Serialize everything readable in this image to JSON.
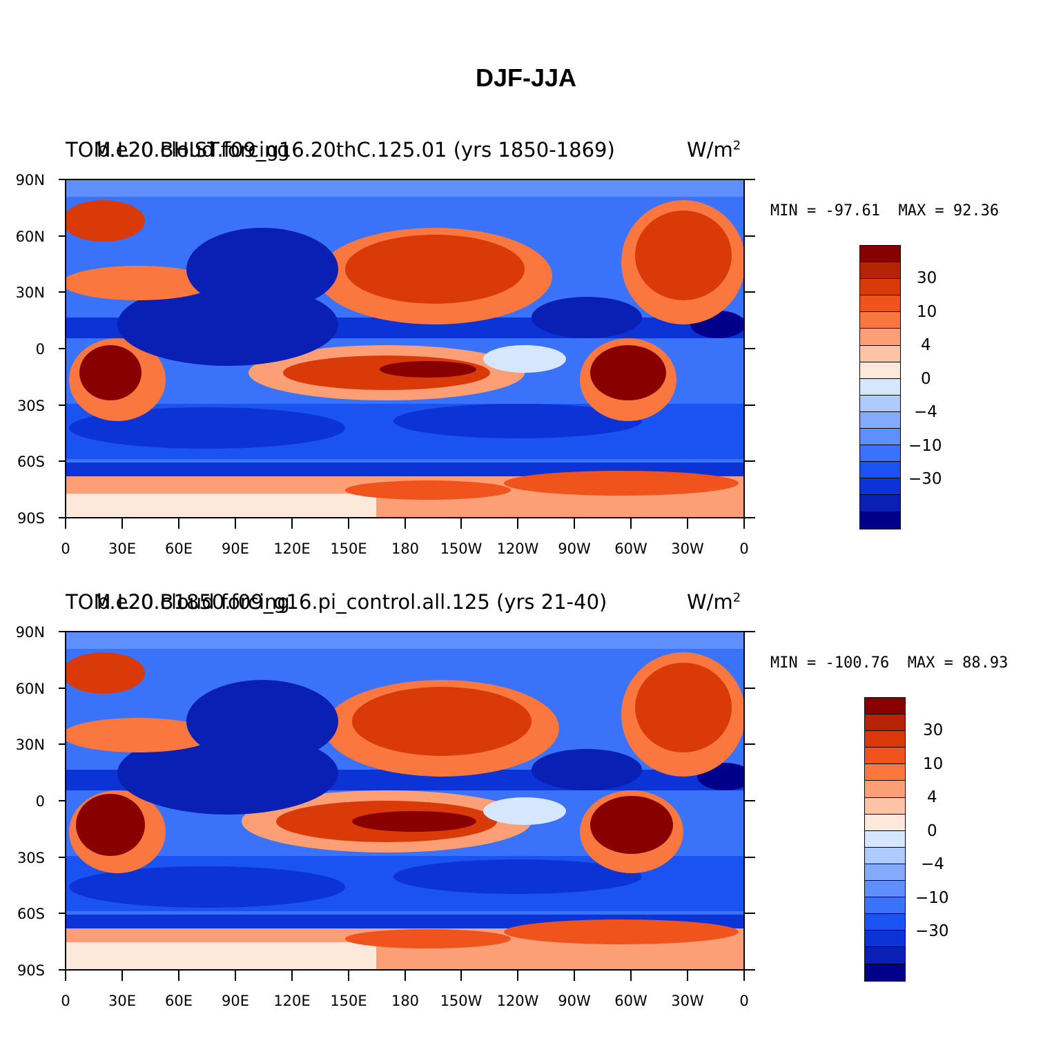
{
  "title": "DJF-JJA",
  "colors": {
    "scale": [
      "#00008b",
      "#0a1fb4",
      "#0b33d6",
      "#1b52f2",
      "#3a72fa",
      "#5e8ffc",
      "#83aafd",
      "#aecbfd",
      "#d6e7fd",
      "#fde8dc",
      "#fdc3a6",
      "#fc9f76",
      "#fa7840",
      "#f0531c",
      "#d93a08",
      "#b52405",
      "#880000"
    ]
  },
  "panels": [
    {
      "model_title": "b.e20.BHIST.f09_g16.20thC.125.01 (yrs 1850-1869)",
      "field_title": "TOM L20 cloud forcing",
      "units": "W/m",
      "units_exp": "2",
      "min_label": "MIN = -97.61",
      "max_label": "MAX =  92.36",
      "colorbar_labels": [
        "30",
        "10",
        "4",
        "0",
        "−4",
        "−10",
        "−30"
      ]
    },
    {
      "model_title": "b.e20.B1850.f09_g16.pi_control.all.125 (yrs 21-40)",
      "field_title": "TOM L20 cloud forcing",
      "units": "W/m",
      "units_exp": "2",
      "min_label": "MIN = -100.76",
      "max_label": "MAX =  88.93",
      "colorbar_labels": [
        "30",
        "10",
        "4",
        "0",
        "−4",
        "−10",
        "−30"
      ]
    }
  ],
  "axes": {
    "lat_labels": [
      "90N",
      "60N",
      "30N",
      "0",
      "30S",
      "60S",
      "90S"
    ],
    "lon_labels": [
      "0",
      "30E",
      "60E",
      "90E",
      "120E",
      "150E",
      "180",
      "150W",
      "120W",
      "90W",
      "60W",
      "30W",
      "0"
    ]
  }
}
